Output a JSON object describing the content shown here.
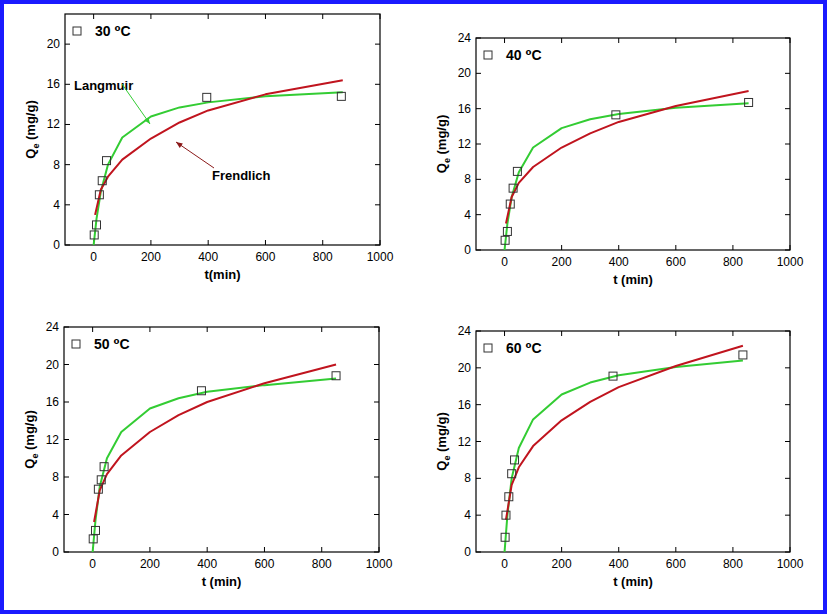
{
  "chart_data": [
    {
      "type": "scatter",
      "title": "30 ⁰C",
      "x_label": "t(min)",
      "y_label": "Qe (mg/g)",
      "xlim": [
        -100,
        1000
      ],
      "xticks": [
        0,
        200,
        400,
        600,
        800,
        1000
      ],
      "ylim": [
        0,
        23
      ],
      "yticks": [
        0,
        4,
        8,
        12,
        16,
        20
      ],
      "annotations": [
        "Langmuir",
        "Frendlich"
      ],
      "series": [
        {
          "type": "scatter",
          "marker": "square",
          "color": "#333333",
          "x": [
            2,
            10,
            20,
            30,
            45,
            395,
            865
          ],
          "values": [
            1.0,
            2.0,
            5.0,
            6.4,
            8.4,
            14.7,
            14.8
          ]
        },
        {
          "type": "line",
          "color": "#33cc33",
          "x": [
            0,
            10,
            25,
            50,
            100,
            200,
            300,
            400,
            600,
            870
          ],
          "values": [
            0,
            2.6,
            5.3,
            8.0,
            10.7,
            12.8,
            13.7,
            14.2,
            14.8,
            15.2
          ]
        },
        {
          "type": "line",
          "color": "#c0141e",
          "x": [
            5,
            25,
            50,
            100,
            200,
            300,
            400,
            600,
            870
          ],
          "values": [
            3.0,
            5.5,
            6.8,
            8.5,
            10.6,
            12.2,
            13.4,
            15.0,
            16.4
          ]
        }
      ]
    },
    {
      "type": "scatter",
      "title": "40 ⁰C",
      "x_label": "t (min)",
      "y_label": "Qe (mg/g)",
      "xlim": [
        -100,
        1000
      ],
      "xticks": [
        0,
        200,
        400,
        600,
        800,
        1000
      ],
      "ylim": [
        0,
        24
      ],
      "yticks": [
        0,
        4,
        8,
        12,
        16,
        20,
        24
      ],
      "series": [
        {
          "type": "scatter",
          "marker": "square",
          "color": "#333333",
          "x": [
            2,
            10,
            20,
            30,
            45,
            390,
            855
          ],
          "values": [
            1.1,
            2.1,
            5.2,
            7.0,
            8.9,
            15.3,
            16.7
          ]
        },
        {
          "type": "line",
          "color": "#33cc33",
          "x": [
            0,
            10,
            25,
            50,
            100,
            200,
            300,
            400,
            600,
            855
          ],
          "values": [
            0,
            3.0,
            6.0,
            8.8,
            11.6,
            13.8,
            14.8,
            15.4,
            16.1,
            16.6
          ]
        },
        {
          "type": "line",
          "color": "#c0141e",
          "x": [
            5,
            25,
            50,
            100,
            200,
            300,
            400,
            600,
            855
          ],
          "values": [
            3.0,
            6.0,
            7.6,
            9.4,
            11.6,
            13.2,
            14.5,
            16.3,
            18.0
          ]
        }
      ]
    },
    {
      "type": "scatter",
      "title": "50 ⁰C",
      "x_label": "t (min)",
      "y_label": "Qe (mg/g)",
      "xlim": [
        -100,
        1000
      ],
      "xticks": [
        0,
        200,
        400,
        600,
        800,
        1000
      ],
      "ylim": [
        0,
        24
      ],
      "yticks": [
        0,
        4,
        8,
        12,
        16,
        20,
        24
      ],
      "series": [
        {
          "type": "scatter",
          "marker": "square",
          "color": "#333333",
          "x": [
            2,
            10,
            20,
            30,
            40,
            380,
            850
          ],
          "values": [
            1.4,
            2.3,
            6.7,
            7.7,
            9.1,
            17.2,
            18.8
          ]
        },
        {
          "type": "line",
          "color": "#33cc33",
          "x": [
            0,
            10,
            25,
            50,
            100,
            200,
            300,
            400,
            600,
            850
          ],
          "values": [
            0,
            3.4,
            7.0,
            10.0,
            12.8,
            15.3,
            16.4,
            17.1,
            17.8,
            18.5
          ]
        },
        {
          "type": "line",
          "color": "#c0141e",
          "x": [
            5,
            25,
            50,
            100,
            200,
            300,
            400,
            600,
            850
          ],
          "values": [
            3.2,
            6.6,
            8.3,
            10.3,
            12.8,
            14.6,
            16.0,
            18.0,
            20.0
          ]
        }
      ]
    },
    {
      "type": "scatter",
      "title": "60 ⁰C",
      "x_label": "t (min)",
      "y_label": "Qe (mg/g)",
      "xlim": [
        -100,
        1000
      ],
      "xticks": [
        0,
        200,
        400,
        600,
        800,
        1000
      ],
      "ylim": [
        0,
        24
      ],
      "yticks": [
        0,
        4,
        8,
        12,
        16,
        20,
        24
      ],
      "series": [
        {
          "type": "scatter",
          "marker": "square",
          "color": "#333333",
          "x": [
            2,
            5,
            15,
            25,
            35,
            380,
            835
          ],
          "values": [
            1.6,
            4.0,
            6.0,
            8.5,
            10.0,
            19.1,
            21.4
          ]
        },
        {
          "type": "line",
          "color": "#33cc33",
          "x": [
            0,
            10,
            25,
            50,
            100,
            200,
            300,
            400,
            600,
            835
          ],
          "values": [
            0,
            4.0,
            8.0,
            11.3,
            14.4,
            17.1,
            18.4,
            19.2,
            20.1,
            20.8
          ]
        },
        {
          "type": "line",
          "color": "#c0141e",
          "x": [
            5,
            25,
            50,
            100,
            200,
            300,
            400,
            600,
            835
          ],
          "values": [
            3.5,
            7.3,
            9.2,
            11.5,
            14.3,
            16.3,
            17.9,
            20.2,
            22.4
          ]
        }
      ]
    }
  ]
}
